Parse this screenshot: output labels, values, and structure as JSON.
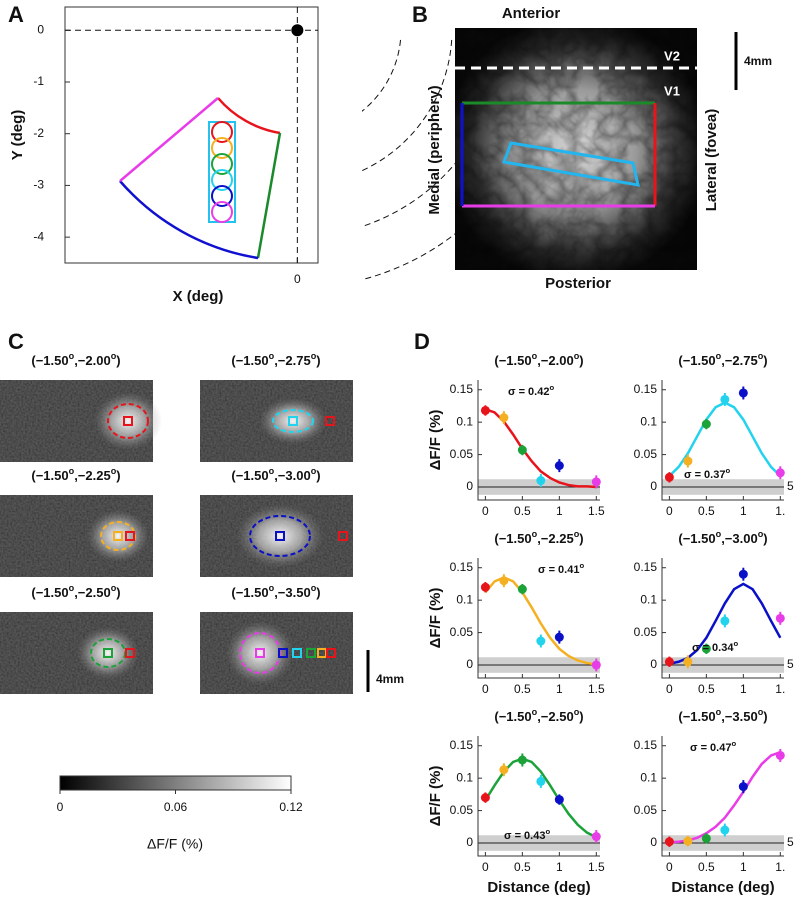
{
  "panel_a": {
    "label": "A",
    "x_label": "X (deg)",
    "y_label": "Y (deg)",
    "xlim": [
      -4.5,
      0.4
    ],
    "ylim": [
      -4.5,
      0.45
    ],
    "xticks": [
      0
    ],
    "yticks": [
      0,
      -1,
      -2,
      -3,
      -4
    ]
  },
  "panel_b": {
    "label": "B",
    "top": "Anterior",
    "bottom": "Posterior",
    "left": "Medial (periphery)",
    "right": "Lateral (fovea)",
    "areas": [
      "V2",
      "V1"
    ],
    "scale_bar": "4mm"
  },
  "panel_c": {
    "label": "C",
    "images": [
      {
        "title": [
          "(−1.50",
          "o",
          ",−2.00",
          "o",
          ")"
        ]
      },
      {
        "title": [
          "(−1.50",
          "o",
          ",−2.75",
          "o",
          ")"
        ]
      },
      {
        "title": [
          "(−1.50",
          "o",
          ",−2.25",
          "o",
          ")"
        ]
      },
      {
        "title": [
          "(−1.50",
          "o",
          ",−3.00",
          "o",
          ")"
        ]
      },
      {
        "title": [
          "(−1.50",
          "o",
          ",−2.50",
          "o",
          ")"
        ]
      },
      {
        "title": [
          "(−1.50",
          "o",
          ",−3.50",
          "o",
          ")"
        ]
      }
    ],
    "scale_bar": "4mm",
    "colorbar": {
      "label": "ΔF/F (%)",
      "lim": [
        0,
        0.12
      ],
      "ticks": [
        0,
        0.06,
        0.12
      ]
    }
  },
  "panel_d": {
    "label": "D"
  },
  "chart_data": [
    {
      "type": "line",
      "title": [
        "(−1.50",
        "o",
        ",−2.00",
        "o",
        ")"
      ],
      "y_label": "ΔF/F (%)",
      "x": [
        0,
        0.25,
        0.5,
        0.75,
        1,
        1.5
      ],
      "points": {
        "values": [
          0.118,
          0.107,
          0.057,
          0.01,
          0.033,
          0.008
        ],
        "errors": [
          0.008,
          0.01,
          0.008,
          0.01,
          0.01,
          0.01
        ],
        "colors": [
          "#e8141b",
          "#f5b021",
          "#1ba33a",
          "#22d3ee",
          "#0a10c8",
          "#e83ce8"
        ]
      },
      "fit": {
        "color": "#e8141b",
        "x": [
          0,
          0.125,
          0.25,
          0.375,
          0.5,
          0.625,
          0.75,
          0.875,
          1,
          1.125,
          1.25,
          1.375,
          1.5
        ],
        "values": [
          0.12,
          0.115,
          0.101,
          0.081,
          0.059,
          0.04,
          0.024,
          0.014,
          0.007,
          0.003,
          0.001,
          0.001,
          0
        ]
      },
      "band": [
        -0.012,
        0.012
      ],
      "annotation": [
        "σ = 0.42",
        "o"
      ],
      "xlim": [
        -0.1,
        1.55
      ],
      "ylim": [
        -0.02,
        0.165
      ],
      "xticks": [
        0,
        0.5,
        1,
        1.5
      ],
      "yticks": [
        0,
        0.05,
        0.1,
        0.15
      ]
    },
    {
      "type": "line",
      "title": [
        "(−1.50",
        "o",
        ",−2.75",
        "o",
        ")"
      ],
      "x": [
        0,
        0.25,
        0.5,
        0.75,
        1,
        1.5
      ],
      "points": {
        "values": [
          0.015,
          0.04,
          0.097,
          0.135,
          0.145,
          0.022
        ],
        "errors": [
          0.008,
          0.01,
          0.008,
          0.01,
          0.01,
          0.01
        ],
        "colors": [
          "#e8141b",
          "#f5b021",
          "#1ba33a",
          "#22d3ee",
          "#0a10c8",
          "#e83ce8"
        ]
      },
      "fit": {
        "color": "#22d3ee",
        "x": [
          0,
          0.125,
          0.25,
          0.375,
          0.5,
          0.625,
          0.75,
          0.875,
          1,
          1.125,
          1.25,
          1.375,
          1.5
        ],
        "values": [
          0.017,
          0.031,
          0.052,
          0.078,
          0.104,
          0.123,
          0.13,
          0.123,
          0.104,
          0.078,
          0.052,
          0.031,
          0.017
        ]
      },
      "band": [
        -0.012,
        0.012
      ],
      "annotation": [
        "σ = 0.37",
        "o"
      ],
      "edge_text": "5",
      "xlim": [
        -0.1,
        1.55
      ],
      "ylim": [
        -0.02,
        0.165
      ],
      "xticks": [
        0,
        0.5,
        1,
        {
          "value": 1.5,
          "label": "1."
        }
      ],
      "yticks": [
        0,
        0.05,
        0.1,
        0.15
      ]
    },
    {
      "type": "line",
      "title": [
        "(−1.50",
        "o",
        ",−2.25",
        "o",
        ")"
      ],
      "y_label": "ΔF/F (%)",
      "x": [
        0,
        0.25,
        0.5,
        0.75,
        1,
        1.5
      ],
      "points": {
        "values": [
          0.12,
          0.13,
          0.117,
          0.037,
          0.043,
          0
        ],
        "errors": [
          0.008,
          0.01,
          0.008,
          0.01,
          0.01,
          0.01
        ],
        "colors": [
          "#e8141b",
          "#f5b021",
          "#1ba33a",
          "#22d3ee",
          "#0a10c8",
          "#e83ce8"
        ]
      },
      "fit": {
        "color": "#f5b021",
        "x": [
          0,
          0.125,
          0.25,
          0.375,
          0.5,
          0.625,
          0.75,
          0.875,
          1,
          1.125,
          1.25,
          1.375,
          1.5
        ],
        "values": [
          0.112,
          0.129,
          0.135,
          0.129,
          0.112,
          0.089,
          0.064,
          0.042,
          0.025,
          0.014,
          0.007,
          0.003,
          0.001
        ]
      },
      "band": [
        -0.012,
        0.012
      ],
      "annotation": [
        "σ = 0.41",
        "o"
      ],
      "xlim": [
        -0.1,
        1.55
      ],
      "ylim": [
        -0.02,
        0.165
      ],
      "xticks": [
        0,
        0.5,
        1,
        1.5
      ],
      "yticks": [
        0,
        0.05,
        0.1,
        0.15
      ]
    },
    {
      "type": "line",
      "title": [
        "(−1.50",
        "o",
        ",−3.00",
        "o",
        ")"
      ],
      "x": [
        0,
        0.25,
        0.5,
        0.75,
        1,
        1.5
      ],
      "points": {
        "values": [
          0.005,
          0.005,
          0.025,
          0.068,
          0.14,
          0.072
        ],
        "errors": [
          0.008,
          0.01,
          0.008,
          0.01,
          0.01,
          0.01
        ],
        "colors": [
          "#e8141b",
          "#f5b021",
          "#1ba33a",
          "#22d3ee",
          "#0a10c8",
          "#e83ce8"
        ]
      },
      "fit": {
        "color": "#0a10c8",
        "x": [
          0,
          0.125,
          0.25,
          0.375,
          0.5,
          0.625,
          0.75,
          0.875,
          1,
          1.125,
          1.25,
          1.375,
          1.5
        ],
        "values": [
          0.002,
          0.005,
          0.011,
          0.023,
          0.042,
          0.068,
          0.095,
          0.117,
          0.125,
          0.117,
          0.095,
          0.068,
          0.042
        ]
      },
      "band": [
        -0.012,
        0.012
      ],
      "annotation": [
        "σ = 0.34",
        "o"
      ],
      "edge_text": "5",
      "xlim": [
        -0.1,
        1.55
      ],
      "ylim": [
        -0.02,
        0.165
      ],
      "xticks": [
        0,
        0.5,
        1,
        {
          "value": 1.5,
          "label": "1."
        }
      ],
      "yticks": [
        0,
        0.05,
        0.1,
        0.15
      ]
    },
    {
      "type": "line",
      "title": [
        "(−1.50",
        "o",
        ",−2.50",
        "o",
        ")"
      ],
      "y_label": "ΔF/F (%)",
      "x_label": "Distance (deg)",
      "x": [
        0,
        0.25,
        0.5,
        0.75,
        1,
        1.5
      ],
      "points": {
        "values": [
          0.07,
          0.113,
          0.128,
          0.095,
          0.067,
          0.01
        ],
        "errors": [
          0.008,
          0.01,
          0.01,
          0.01,
          0.008,
          0.01
        ],
        "colors": [
          "#e8141b",
          "#f5b021",
          "#1ba33a",
          "#22d3ee",
          "#0a10c8",
          "#e83ce8"
        ]
      },
      "fit": {
        "color": "#1ba33a",
        "x": [
          0,
          0.125,
          0.25,
          0.375,
          0.5,
          0.625,
          0.75,
          0.875,
          1,
          1.125,
          1.25,
          1.375,
          1.5
        ],
        "values": [
          0.066,
          0.089,
          0.11,
          0.125,
          0.13,
          0.125,
          0.11,
          0.089,
          0.066,
          0.045,
          0.028,
          0.016,
          0.009
        ]
      },
      "band": [
        -0.012,
        0.012
      ],
      "annotation": [
        "σ = 0.43",
        "o"
      ],
      "xlim": [
        -0.1,
        1.55
      ],
      "ylim": [
        -0.02,
        0.165
      ],
      "xticks": [
        0,
        0.5,
        1,
        1.5
      ],
      "yticks": [
        0,
        0.05,
        0.1,
        0.15
      ]
    },
    {
      "type": "line",
      "title": [
        "(−1.50",
        "o",
        ",−3.50",
        "o",
        ")"
      ],
      "x_label": "Distance (deg)",
      "x": [
        0,
        0.25,
        0.5,
        0.75,
        1,
        1.5
      ],
      "points": {
        "values": [
          0.002,
          0.003,
          0.007,
          0.02,
          0.087,
          0.135
        ],
        "errors": [
          0.008,
          0.008,
          0.008,
          0.01,
          0.01,
          0.01
        ],
        "colors": [
          "#e8141b",
          "#f5b021",
          "#1ba33a",
          "#22d3ee",
          "#0a10c8",
          "#e83ce8"
        ]
      },
      "fit": {
        "color": "#e83ce8",
        "x": [
          0,
          0.125,
          0.25,
          0.375,
          0.5,
          0.625,
          0.75,
          0.875,
          1,
          1.125,
          1.25,
          1.375,
          1.5
        ],
        "values": [
          0.001,
          0.002,
          0.004,
          0.008,
          0.015,
          0.025,
          0.039,
          0.058,
          0.079,
          0.102,
          0.122,
          0.135,
          0.14
        ]
      },
      "band": [
        -0.012,
        0.012
      ],
      "annotation": [
        "σ = 0.47",
        "o"
      ],
      "edge_text": "5",
      "xlim": [
        -0.1,
        1.55
      ],
      "ylim": [
        -0.02,
        0.165
      ],
      "xticks": [
        0,
        0.5,
        1,
        {
          "value": 1.5,
          "label": "1."
        }
      ],
      "yticks": [
        0,
        0.05,
        0.1,
        0.15
      ]
    }
  ]
}
